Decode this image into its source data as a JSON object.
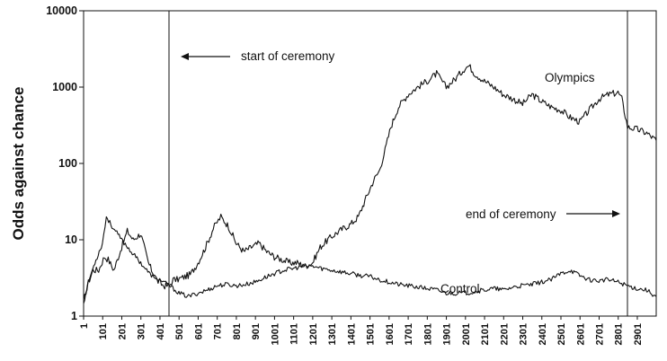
{
  "chart_data": {
    "type": "line",
    "title": "",
    "xlabel": "",
    "ylabel": "Odds against chance",
    "yscale": "log",
    "ylim": [
      1,
      10000
    ],
    "xlim": [
      1,
      3000
    ],
    "y_ticks": [
      "1",
      "10",
      "100",
      "1000",
      "10000"
    ],
    "x_ticks": [
      "1",
      "101",
      "201",
      "301",
      "401",
      "501",
      "601",
      "701",
      "801",
      "901",
      "1001",
      "1101",
      "1201",
      "1301",
      "1401",
      "1501",
      "1601",
      "1701",
      "1801",
      "1901",
      "2001",
      "2101",
      "2201",
      "2301",
      "2401",
      "2501",
      "2601",
      "2701",
      "2801",
      "2901"
    ],
    "grid": false,
    "legend": "none",
    "series": [
      {
        "name": "Olympics",
        "x": [
          1,
          20,
          50,
          80,
          110,
          130,
          160,
          200,
          230,
          260,
          300,
          340,
          380,
          420,
          450,
          470,
          490,
          520,
          560,
          600,
          640,
          680,
          700,
          720,
          760,
          800,
          840,
          880,
          920,
          960,
          1000,
          1040,
          1080,
          1120,
          1160,
          1200,
          1240,
          1280,
          1320,
          1360,
          1400,
          1440,
          1480,
          1520,
          1550,
          1580,
          1610,
          1650,
          1700,
          1750,
          1800,
          1850,
          1900,
          1950,
          2000,
          2020,
          2050,
          2100,
          2150,
          2200,
          2250,
          2300,
          2350,
          2400,
          2450,
          2500,
          2550,
          2600,
          2650,
          2700,
          2750,
          2800,
          2820,
          2850,
          2900,
          2950,
          3000
        ],
        "y": [
          1.5,
          2.5,
          4,
          4,
          6,
          5.5,
          4,
          8,
          13,
          10,
          12,
          5,
          3,
          2.5,
          2.5,
          3,
          3,
          3.2,
          3.5,
          5,
          8,
          14,
          17,
          20,
          15,
          9,
          7,
          8,
          9,
          7,
          6,
          5.5,
          5,
          5,
          4.5,
          5,
          8,
          10,
          12,
          14,
          16,
          20,
          35,
          60,
          80,
          150,
          300,
          550,
          800,
          1000,
          1200,
          1500,
          1000,
          1300,
          1800,
          1900,
          1500,
          1200,
          1000,
          800,
          700,
          600,
          800,
          650,
          550,
          500,
          400,
          350,
          500,
          700,
          800,
          850,
          700,
          300,
          280,
          250,
          200
        ]
      },
      {
        "name": "Control",
        "x": [
          1,
          30,
          60,
          100,
          120,
          150,
          200,
          250,
          300,
          350,
          400,
          450,
          480,
          500,
          550,
          600,
          650,
          700,
          750,
          800,
          850,
          900,
          950,
          1000,
          1050,
          1100,
          1150,
          1200,
          1250,
          1300,
          1350,
          1400,
          1450,
          1500,
          1550,
          1600,
          1650,
          1700,
          1750,
          1800,
          1850,
          1900,
          1950,
          2000,
          2050,
          2100,
          2150,
          2200,
          2250,
          2300,
          2350,
          2400,
          2450,
          2500,
          2550,
          2600,
          2650,
          2700,
          2750,
          2800,
          2850,
          2900,
          2950,
          3000
        ],
        "y": [
          1.5,
          3,
          5,
          9,
          20,
          15,
          10,
          7,
          5,
          3.5,
          3,
          2.5,
          2.2,
          2,
          1.8,
          2,
          2.2,
          2.5,
          2.6,
          2.5,
          2.6,
          2.8,
          3.2,
          3.6,
          4,
          4.2,
          4.5,
          4.5,
          4.2,
          4,
          3.8,
          3.6,
          3.4,
          3.3,
          3,
          2.8,
          2.6,
          2.5,
          2.4,
          2.3,
          2.2,
          2,
          2,
          2,
          2.1,
          2.2,
          2.3,
          2.2,
          2.4,
          2.5,
          2.6,
          2.8,
          3,
          3.6,
          4,
          3.4,
          3,
          2.9,
          3,
          2.8,
          2.5,
          2.3,
          2.2,
          1.8
        ]
      }
    ],
    "annotations": [
      {
        "text": "start of ceremony",
        "x": 450,
        "arrow": "left"
      },
      {
        "text": "end of ceremony",
        "x": 2825,
        "arrow": "right"
      }
    ],
    "series_labels": [
      "Olympics",
      "Control"
    ]
  }
}
